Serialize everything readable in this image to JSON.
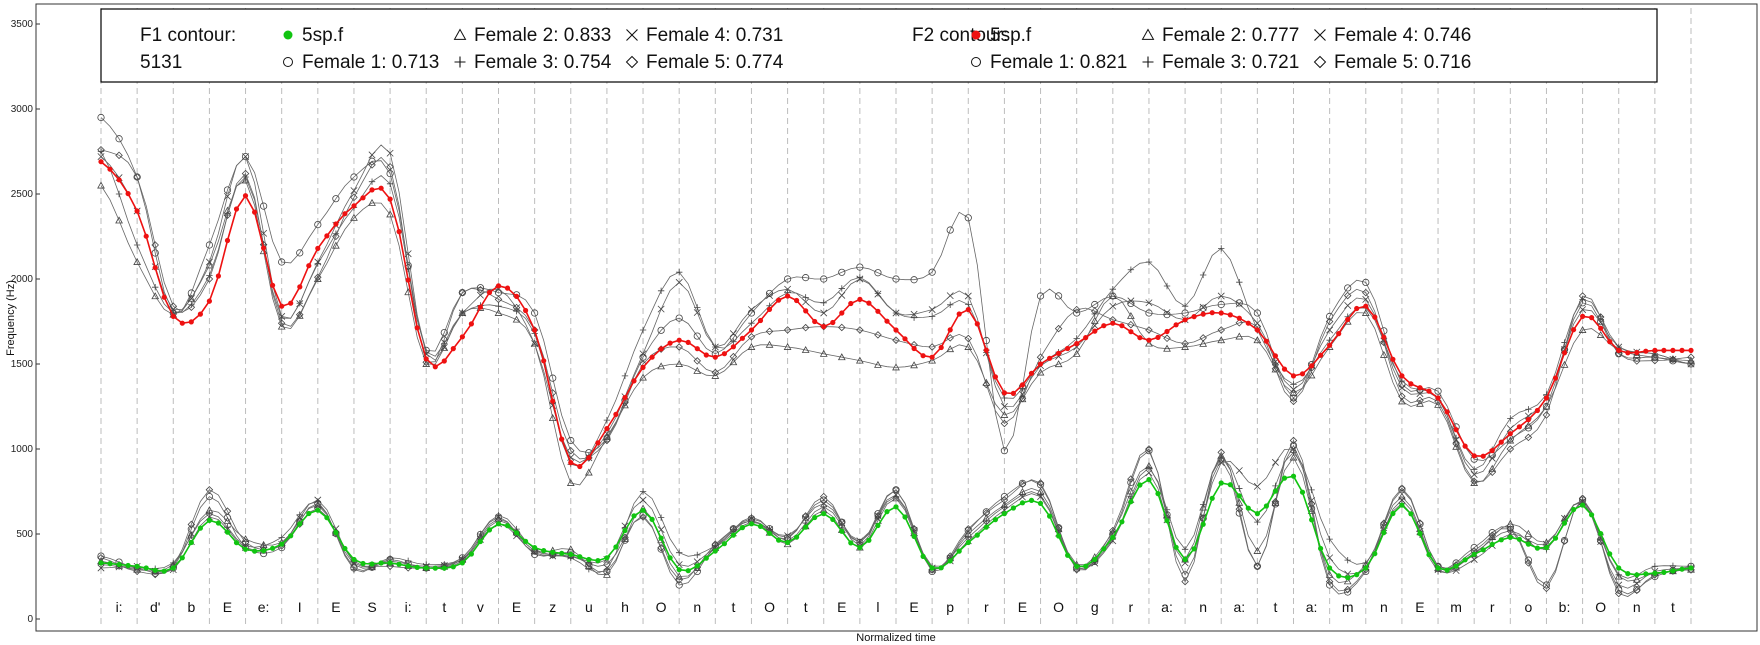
{
  "chart_data": {
    "type": "line",
    "xlabel": "Normalized time",
    "ylabel": "Frequency (Hz)",
    "ylim": [
      0,
      3500
    ],
    "y_ticks": [
      0,
      500,
      1000,
      1500,
      2000,
      2500,
      3000,
      3500
    ],
    "grid": "dashed vertical segment boundaries",
    "phonemes": [
      "i:",
      "d'",
      "b",
      "E",
      "e:",
      "I",
      "E",
      "S",
      "i:",
      "t",
      "v",
      "E",
      "z",
      "u",
      "h",
      "O",
      "n",
      "t",
      "O",
      "t",
      "E",
      "l",
      "E",
      "p",
      "r",
      "E",
      "O",
      "g",
      "r",
      "a:",
      "n",
      "a:",
      "t",
      "a:",
      "m",
      "n",
      "E",
      "m",
      "r",
      "o",
      "b:",
      "O",
      "n",
      "t"
    ],
    "legend": {
      "f1_title": "F1 contour:",
      "f1_id": "5131",
      "f1_entries": [
        "5sp.f",
        "Female 1: 0.713",
        "Female 2: 0.833",
        "Female 3: 0.754",
        "Female 4: 0.731",
        "Female 5: 0.774"
      ],
      "f2_title": "F2 contour:",
      "f2_entries": [
        "5sp.f",
        "Female 1: 0.821",
        "Female 2: 0.777",
        "Female 3: 0.721",
        "Female 4: 0.746",
        "Female 5: 0.716"
      ]
    },
    "colors": {
      "f1_main": "#11c411",
      "f2_main": "#ee1111",
      "speaker_lines": "#555555"
    },
    "series_f1_main": {
      "name": "5sp.f",
      "x": [
        0,
        1,
        2,
        3,
        4,
        5,
        6,
        7,
        8,
        9,
        10,
        11,
        12,
        13,
        14,
        15,
        16,
        17,
        18,
        19,
        20,
        21,
        22,
        23,
        24,
        25,
        26,
        27,
        28,
        29,
        30,
        31,
        32,
        33,
        34,
        35,
        36,
        37,
        38,
        39,
        40,
        41,
        42,
        43,
        44
      ],
      "values": [
        330,
        310,
        300,
        580,
        410,
        440,
        640,
        350,
        330,
        300,
        330,
        560,
        420,
        380,
        360,
        640,
        290,
        400,
        560,
        450,
        620,
        420,
        660,
        300,
        450,
        620,
        680,
        310,
        480,
        820,
        350,
        800,
        620,
        840,
        300,
        300,
        670,
        300,
        380,
        480,
        420,
        670,
        300,
        270,
        300
      ],
      "note": ""
    },
    "series_f2_main": {
      "name": "5sp.f",
      "x": [
        0,
        1,
        2,
        3,
        4,
        5,
        6,
        7,
        8,
        9,
        10,
        11,
        12,
        13,
        14,
        15,
        16,
        17,
        18,
        19,
        20,
        21,
        22,
        23,
        24,
        25,
        26,
        27,
        28,
        29,
        30,
        31,
        32,
        33,
        34,
        35,
        36,
        37,
        38,
        39,
        40,
        41,
        42,
        43,
        44
      ],
      "values": [
        2690,
        2400,
        1780,
        1870,
        2490,
        1840,
        2180,
        2430,
        2470,
        1530,
        1660,
        1960,
        1700,
        920,
        1120,
        1480,
        1640,
        1540,
        1700,
        1900,
        1720,
        1880,
        1700,
        1540,
        1820,
        1330,
        1500,
        1620,
        1740,
        1640,
        1760,
        1800,
        1700,
        1430,
        1610,
        1840,
        1430,
        1300,
        960,
        1090,
        1300,
        1780,
        1580,
        1580,
        1580
      ],
      "note": ""
    },
    "speakers_f1": [
      {
        "name": "Female 1",
        "marker": "circle",
        "values": [
          370,
          300,
          300,
          720,
          420,
          420,
          680,
          300,
          350,
          300,
          360,
          600,
          380,
          390,
          280,
          610,
          200,
          430,
          590,
          480,
          700,
          450,
          760,
          280,
          520,
          720,
          790,
          300,
          500,
          990,
          260,
          940,
          310,
          1020,
          200,
          280,
          760,
          310,
          420,
          540,
          200,
          700,
          170,
          250,
          310
        ]
      },
      {
        "name": "Female 2",
        "marker": "triangle",
        "values": [
          340,
          290,
          320,
          640,
          470,
          450,
          670,
          320,
          330,
          300,
          350,
          590,
          400,
          410,
          260,
          650,
          250,
          420,
          580,
          440,
          640,
          420,
          710,
          290,
          500,
          670,
          750,
          320,
          510,
          900,
          350,
          960,
          400,
          950,
          260,
          320,
          720,
          300,
          380,
          560,
          450,
          690,
          250,
          270,
          290
        ]
      },
      {
        "name": "Female 3",
        "marker": "plus",
        "values": [
          320,
          300,
          330,
          620,
          430,
          480,
          690,
          290,
          360,
          320,
          360,
          610,
          410,
          360,
          290,
          750,
          390,
          430,
          600,
          460,
          660,
          450,
          720,
          310,
          480,
          660,
          730,
          310,
          470,
          890,
          410,
          950,
          570,
          980,
          470,
          330,
          680,
          280,
          390,
          520,
          410,
          700,
          260,
          310,
          310
        ]
      },
      {
        "name": "Female 4",
        "marker": "x",
        "values": [
          300,
          310,
          290,
          600,
          420,
          440,
          700,
          330,
          340,
          310,
          350,
          560,
          390,
          370,
          350,
          700,
          320,
          420,
          570,
          490,
          680,
          460,
          730,
          300,
          460,
          640,
          720,
          300,
          460,
          860,
          330,
          920,
          780,
          1000,
          360,
          300,
          700,
          290,
          350,
          500,
          440,
          690,
          200,
          280,
          300
        ]
      },
      {
        "name": "Female 5",
        "marker": "diamond",
        "values": [
          360,
          280,
          310,
          760,
          450,
          430,
          650,
          340,
          310,
          300,
          340,
          580,
          400,
          370,
          320,
          600,
          230,
          440,
          580,
          470,
          720,
          430,
          760,
          290,
          530,
          700,
          800,
          290,
          520,
          1000,
          220,
          980,
          310,
          1050,
          220,
          290,
          770,
          310,
          400,
          530,
          180,
          710,
          150,
          260,
          290
        ]
      }
    ],
    "speakers_f2": [
      {
        "name": "Female 1",
        "marker": "circle",
        "values": [
          2950,
          2600,
          1800,
          2200,
          2720,
          2100,
          2320,
          2600,
          2620,
          1580,
          1920,
          1920,
          1800,
          1050,
          1060,
          1540,
          1770,
          1560,
          1800,
          2000,
          2000,
          2070,
          2000,
          2040,
          2360,
          990,
          1900,
          1800,
          1900,
          1800,
          1800,
          1850,
          1800,
          1300,
          1780,
          1980,
          1380,
          1340,
          940,
          1060,
          1250,
          1860,
          1560,
          1540,
          1500
        ]
      },
      {
        "name": "Female 2",
        "marker": "triangle",
        "values": [
          2550,
          2100,
          1790,
          2080,
          2580,
          1720,
          2000,
          2360,
          2380,
          1500,
          1800,
          1800,
          1620,
          800,
          1070,
          1420,
          1500,
          1430,
          1600,
          1600,
          1560,
          1520,
          1480,
          1520,
          1600,
          1200,
          1450,
          1560,
          1900,
          1620,
          1600,
          1640,
          1640,
          1330,
          1600,
          1800,
          1280,
          1260,
          800,
          1050,
          1250,
          1700,
          1580,
          1540,
          1520
        ]
      },
      {
        "name": "Female 3",
        "marker": "plus",
        "values": [
          2750,
          2200,
          1800,
          2020,
          2600,
          1770,
          2090,
          2420,
          2560,
          1570,
          1800,
          1840,
          1680,
          910,
          1170,
          1700,
          2040,
          1600,
          1740,
          1920,
          1860,
          2010,
          1800,
          1780,
          1850,
          1300,
          1500,
          1650,
          1940,
          2100,
          1840,
          2180,
          1700,
          1380,
          1640,
          1830,
          1400,
          1300,
          880,
          1180,
          1320,
          1880,
          1600,
          1560,
          1500
        ]
      },
      {
        "name": "Female 4",
        "marker": "x",
        "values": [
          2720,
          2400,
          1820,
          2100,
          2720,
          1780,
          2100,
          2520,
          2740,
          1560,
          1800,
          1940,
          1620,
          950,
          1090,
          1560,
          1980,
          1600,
          1820,
          1940,
          1800,
          2000,
          1800,
          1820,
          1900,
          1250,
          1490,
          1600,
          1840,
          1860,
          1760,
          1900,
          1740,
          1350,
          1700,
          1880,
          1360,
          1300,
          850,
          1120,
          1300,
          1820,
          1600,
          1560,
          1500
        ]
      },
      {
        "name": "Female 5",
        "marker": "diamond",
        "values": [
          2760,
          2600,
          1840,
          2000,
          2620,
          1740,
          2010,
          2480,
          2660,
          1510,
          1920,
          1880,
          1700,
          990,
          1050,
          1500,
          1600,
          1450,
          1660,
          1700,
          1720,
          1700,
          1640,
          1600,
          1650,
          1150,
          1540,
          1820,
          1760,
          1700,
          1620,
          1700,
          1720,
          1280,
          1750,
          1920,
          1310,
          1280,
          810,
          1000,
          1200,
          1900,
          1560,
          1520,
          1540
        ]
      }
    ]
  }
}
